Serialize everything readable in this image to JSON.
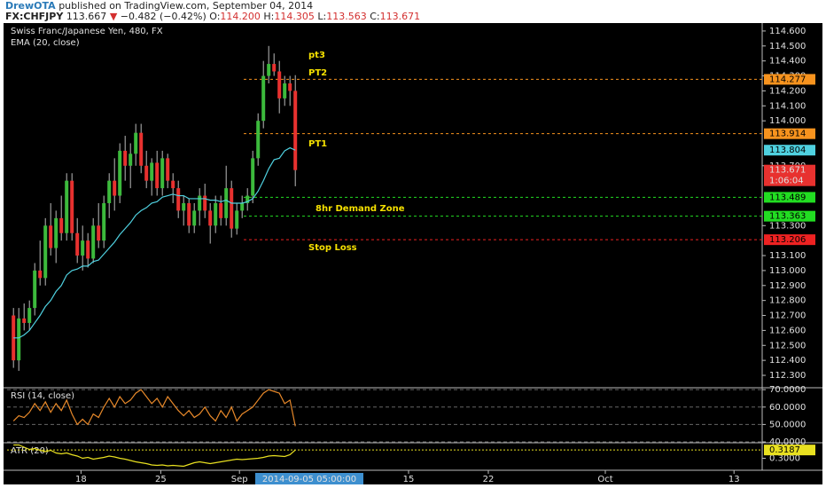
{
  "header": {
    "author": "DrewOTA",
    "published": "published on TradingView.com, September 04, 2014",
    "symbol": "FX:CHFJPY",
    "last": "113.667",
    "arrow": "▼",
    "change": "−0.482 (−0.42%)",
    "ohlc": [
      "O:",
      "114.200",
      "H:",
      "114.305",
      "L:",
      "113.563",
      "C:",
      "113.671"
    ]
  },
  "chart_data": [
    {
      "type": "candlestick",
      "title": "Swiss Franc/Japanese Yen, 480, FX",
      "categories": [
        null,
        null,
        null,
        null,
        null,
        null,
        null,
        null,
        null,
        null,
        null,
        null,
        null,
        null,
        null,
        null,
        null,
        null,
        null,
        null,
        null,
        null,
        null,
        null,
        null,
        null,
        null,
        null,
        null,
        null,
        null,
        null,
        null,
        null,
        null,
        null,
        null,
        null,
        null,
        null,
        null,
        null,
        null,
        null,
        null,
        null,
        null,
        null,
        null,
        null,
        null,
        null,
        null,
        null
      ],
      "open": [
        112.7,
        112.4,
        112.68,
        112.65,
        112.75,
        113.0,
        112.95,
        113.3,
        113.15,
        113.35,
        113.25,
        113.6,
        113.25,
        113.1,
        113.2,
        113.08,
        113.3,
        113.2,
        113.45,
        113.6,
        113.5,
        113.8,
        113.7,
        113.78,
        113.92,
        113.7,
        113.6,
        113.72,
        113.55,
        113.75,
        113.6,
        113.55,
        113.4,
        113.45,
        113.3,
        113.4,
        113.5,
        113.4,
        113.3,
        113.45,
        113.35,
        113.55,
        113.28,
        113.4,
        113.45,
        113.5,
        113.75,
        114.0,
        114.3,
        114.38,
        114.33,
        114.15,
        114.25,
        114.2
      ],
      "high": [
        112.75,
        112.75,
        112.78,
        112.8,
        113.05,
        113.2,
        113.35,
        113.45,
        113.4,
        113.5,
        113.65,
        113.65,
        113.35,
        113.3,
        113.25,
        113.35,
        113.45,
        113.5,
        113.65,
        113.75,
        113.85,
        113.9,
        113.85,
        113.98,
        113.98,
        113.8,
        113.75,
        113.8,
        113.8,
        113.78,
        113.65,
        113.6,
        113.5,
        113.48,
        113.45,
        113.55,
        113.58,
        113.45,
        113.5,
        113.5,
        113.7,
        113.6,
        113.45,
        113.5,
        113.55,
        113.8,
        114.05,
        114.4,
        114.5,
        114.45,
        114.4,
        114.3,
        114.3,
        114.305
      ],
      "low": [
        112.35,
        112.33,
        112.6,
        112.6,
        112.7,
        112.9,
        112.9,
        113.1,
        113.05,
        113.2,
        113.2,
        113.2,
        113.05,
        113.0,
        113.02,
        113.05,
        113.15,
        113.15,
        113.35,
        113.4,
        113.45,
        113.6,
        113.55,
        113.7,
        113.65,
        113.55,
        113.5,
        113.5,
        113.5,
        113.55,
        113.45,
        113.35,
        113.3,
        113.25,
        113.25,
        113.3,
        113.35,
        113.18,
        113.25,
        113.3,
        113.3,
        113.22,
        113.24,
        113.35,
        113.4,
        113.45,
        113.7,
        113.95,
        114.25,
        114.3,
        114.05,
        114.1,
        114.1,
        113.563
      ],
      "close": [
        112.4,
        112.68,
        112.65,
        112.75,
        113.0,
        112.95,
        113.3,
        113.15,
        113.35,
        113.25,
        113.6,
        113.25,
        113.1,
        113.2,
        113.08,
        113.3,
        113.2,
        113.45,
        113.6,
        113.5,
        113.8,
        113.7,
        113.78,
        113.92,
        113.7,
        113.6,
        113.72,
        113.55,
        113.75,
        113.6,
        113.55,
        113.4,
        113.45,
        113.3,
        113.4,
        113.5,
        113.4,
        113.3,
        113.45,
        113.35,
        113.55,
        113.28,
        113.4,
        113.45,
        113.5,
        113.75,
        114.0,
        114.3,
        114.38,
        114.33,
        114.15,
        114.25,
        114.2,
        113.671
      ],
      "up_color": "#3cba3c",
      "down_color": "#e8312f",
      "series": [
        {
          "name": "EMA (20, close)",
          "color": "#4fd1e0",
          "values": [
            112.55,
            112.55,
            112.57,
            112.6,
            112.65,
            112.7,
            112.76,
            112.8,
            112.86,
            112.9,
            112.97,
            113.0,
            113.01,
            113.03,
            113.03,
            113.06,
            113.07,
            113.11,
            113.15,
            113.19,
            113.24,
            113.28,
            113.32,
            113.37,
            113.4,
            113.42,
            113.45,
            113.46,
            113.49,
            113.5,
            113.51,
            113.5,
            113.5,
            113.48,
            113.48,
            113.48,
            113.48,
            113.47,
            113.47,
            113.46,
            113.47,
            113.45,
            113.45,
            113.45,
            113.46,
            113.48,
            113.53,
            113.6,
            113.68,
            113.74,
            113.75,
            113.8,
            113.82,
            113.804
          ]
        }
      ],
      "ylim": [
        112.229,
        114.647
      ],
      "yticks": [
        {
          "value": 114.6,
          "label": "114.600"
        },
        {
          "value": 114.5,
          "label": "114.500"
        },
        {
          "value": 114.4,
          "label": "114.400"
        },
        {
          "value": 114.3,
          "label": "114.300"
        },
        {
          "value": 114.2,
          "label": "114.200"
        },
        {
          "value": 114.1,
          "label": "114.100"
        },
        {
          "value": 114.0,
          "label": "114.000"
        },
        {
          "value": 113.7,
          "label": "113.700"
        },
        {
          "value": 113.3,
          "label": "113.300"
        },
        {
          "value": 113.1,
          "label": "113.100"
        },
        {
          "value": 113.0,
          "label": "113.000"
        },
        {
          "value": 112.9,
          "label": "112.900"
        },
        {
          "value": 112.8,
          "label": "112.800"
        },
        {
          "value": 112.7,
          "label": "112.700"
        },
        {
          "value": 112.6,
          "label": "112.600"
        },
        {
          "value": 112.5,
          "label": "112.500"
        },
        {
          "value": 112.4,
          "label": "112.400"
        },
        {
          "value": 112.3,
          "label": "112.300"
        }
      ],
      "xlim": [
        -1.2,
        140.8
      ],
      "xticks": [
        {
          "value": 12.7,
          "label": "18"
        },
        {
          "value": 27.7,
          "label": "25"
        },
        {
          "value": 42.5,
          "label": "Sep"
        },
        {
          "value": 74.3,
          "label": "15"
        },
        {
          "value": 89.3,
          "label": "22"
        },
        {
          "value": 111.3,
          "label": "Oct"
        },
        {
          "value": 135.5,
          "label": "13"
        }
      ],
      "levels": [
        {
          "value": 114.277,
          "color": "#f7931e"
        },
        {
          "value": 113.914,
          "color": "#f7931e"
        },
        {
          "value": 113.489,
          "color": "#22dd22"
        },
        {
          "value": 113.363,
          "color": "#22dd22"
        },
        {
          "value": 113.206,
          "color": "#ee2222"
        }
      ],
      "annotations": [
        "pt3",
        "PT2",
        "PT1",
        "8hr Demand Zone",
        "Stop Loss"
      ],
      "countdown": "1:06:04",
      "crosshair_label": "2014-09-05 05:00:00"
    },
    {
      "type": "line",
      "title": "RSI (14, close)",
      "color": "#e8892a",
      "values": [
        52,
        55,
        54,
        57,
        62,
        58,
        63,
        57,
        62,
        58,
        64,
        56,
        50,
        53,
        50,
        56,
        54,
        60,
        65,
        60,
        66,
        62,
        64,
        68,
        70,
        66,
        62,
        65,
        60,
        66,
        62,
        58,
        55,
        58,
        54,
        56,
        60,
        55,
        52,
        58,
        54,
        60,
        52,
        56,
        58,
        60,
        64,
        68,
        70,
        69,
        68,
        62,
        64,
        49
      ],
      "ylim": [
        39.5,
        71.1
      ],
      "yticks": [
        {
          "value": 70,
          "label": "70.0000"
        },
        {
          "value": 60,
          "label": "60.0000"
        },
        {
          "value": 50,
          "label": "50.0000"
        },
        {
          "value": 40,
          "label": "40.0000"
        }
      ],
      "grid": true
    },
    {
      "type": "line",
      "title": "ATR (20)",
      "color": "#e8e020",
      "values": [
        0.33,
        0.33,
        0.325,
        0.32,
        0.322,
        0.318,
        0.315,
        0.318,
        0.312,
        0.31,
        0.312,
        0.308,
        0.305,
        0.3,
        0.302,
        0.298,
        0.3,
        0.302,
        0.305,
        0.303,
        0.3,
        0.298,
        0.295,
        0.292,
        0.29,
        0.288,
        0.285,
        0.284,
        0.285,
        0.283,
        0.284,
        0.283,
        0.282,
        0.286,
        0.29,
        0.292,
        0.29,
        0.288,
        0.29,
        0.292,
        0.294,
        0.296,
        0.298,
        0.297,
        0.298,
        0.299,
        0.3,
        0.302,
        0.305,
        0.306,
        0.305,
        0.304,
        0.308,
        0.3187
      ],
      "ylim": [
        0.273,
        0.335
      ],
      "yticks": [
        {
          "value": 0.3,
          "label": "0.3000"
        }
      ],
      "grid": false
    }
  ]
}
